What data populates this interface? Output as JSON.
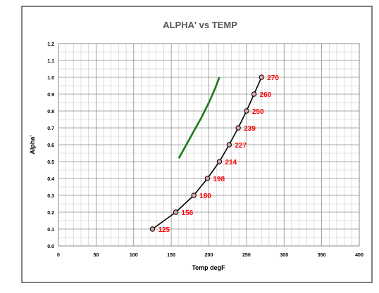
{
  "chart_data": {
    "type": "scatter",
    "title": "ALPHA' vs TEMP",
    "xlabel": "Temp degF",
    "ylabel": "Alpha'",
    "xlim": [
      0,
      400
    ],
    "ylim": [
      0.0,
      1.2
    ],
    "x_ticks": [
      "0",
      "50",
      "100",
      "150",
      "200",
      "250",
      "300",
      "350",
      "400"
    ],
    "y_ticks": [
      "0.0",
      "0.1",
      "0.2",
      "0.3",
      "0.4",
      "0.5",
      "0.6",
      "0.7",
      "0.8",
      "0.9",
      "1.0",
      "1.1",
      "1.2"
    ],
    "grid": true,
    "legend": "none",
    "series": [
      {
        "color": "#000000",
        "marker_fill": "#d9a0a0",
        "label_color": "#ff0000",
        "x": [
          125,
          156,
          180,
          198,
          214,
          227,
          239,
          250,
          260,
          270
        ],
        "y": [
          0.1,
          0.2,
          0.3,
          0.4,
          0.5,
          0.6,
          0.7,
          0.8,
          0.9,
          1.0
        ],
        "point_labels": [
          "125",
          "156",
          "180",
          "198",
          "214",
          "227",
          "239",
          "250",
          "260",
          "270"
        ]
      },
      {
        "color": "#1a7a1a",
        "x": [
          160,
          170,
          180,
          190,
          200,
          208,
          214
        ],
        "y": [
          0.52,
          0.6,
          0.68,
          0.76,
          0.85,
          0.93,
          1.0
        ]
      }
    ]
  }
}
